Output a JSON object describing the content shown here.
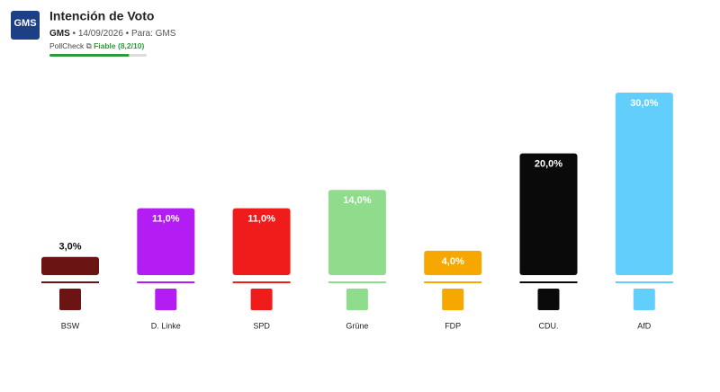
{
  "header": {
    "logo": "GMS",
    "title": "Intención de Voto",
    "source": "GMS",
    "date": "14/09/2026",
    "client": "Para: GMS",
    "pollcheck": {
      "label": "PollCheck",
      "rating": "Fiable (8,2/10)",
      "score": 8.2,
      "max": 10
    }
  },
  "chart_data": {
    "type": "bar",
    "categories": [
      "BSW",
      "D. Linke",
      "SPD",
      "Grüne",
      "FDP",
      "CDU.",
      "AfD"
    ],
    "values": [
      3.0,
      11.0,
      11.0,
      14.0,
      4.0,
      20.0,
      30.0
    ],
    "value_labels": [
      "3,0%",
      "11,0%",
      "11,0%",
      "14,0%",
      "4,0%",
      "20,0%",
      "30,0%"
    ],
    "colors": [
      "#6b1414",
      "#b31cf2",
      "#f01c1c",
      "#8fdc8c",
      "#f6a800",
      "#0a0a0a",
      "#62cefb"
    ]
  }
}
